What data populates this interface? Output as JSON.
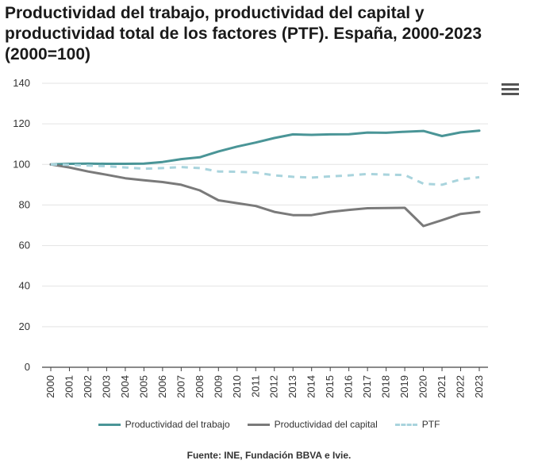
{
  "chart_data": {
    "type": "line",
    "title": "Productividad del trabajo, productividad del capital y productividad total de los factores (PTF). España, 2000-2023 (2000=100)",
    "x": [
      "2000",
      "2001",
      "2002",
      "2003",
      "2004",
      "2005",
      "2006",
      "2007",
      "2008",
      "2009",
      "2010",
      "2011",
      "2012",
      "2013",
      "2014",
      "2015",
      "2016",
      "2017",
      "2018",
      "2019",
      "2020",
      "2021",
      "2022",
      "2023"
    ],
    "ylim": [
      0,
      140
    ],
    "yticks": [
      0,
      20,
      40,
      60,
      80,
      100,
      120,
      140
    ],
    "grid": true,
    "legend_position": "bottom",
    "series": [
      {
        "name": "Productividad del trabajo",
        "color": "#4a9597",
        "dash": "solid",
        "values": [
          100,
          100.3,
          100.4,
          100.3,
          100.3,
          100.4,
          101.2,
          102.6,
          103.5,
          106.4,
          108.8,
          110.8,
          113.0,
          114.8,
          114.6,
          114.8,
          114.9,
          115.7,
          115.6,
          116.1,
          116.5,
          114.0,
          115.8,
          116.6
        ]
      },
      {
        "name": "Productividad del capital",
        "color": "#7a7a7a",
        "dash": "solid",
        "values": [
          100,
          98.5,
          96.5,
          94.9,
          93.2,
          92.2,
          91.3,
          90.0,
          87.2,
          82.3,
          80.9,
          79.5,
          76.6,
          75.0,
          75.0,
          76.6,
          77.6,
          78.4,
          78.5,
          78.6,
          69.6,
          72.5,
          75.6,
          76.6
        ]
      },
      {
        "name": "PTF",
        "color": "#a9d4dd",
        "dash": "dashed",
        "values": [
          100,
          99.8,
          99.4,
          99.1,
          98.5,
          97.9,
          98.2,
          98.7,
          98.2,
          96.5,
          96.4,
          96.0,
          94.6,
          93.9,
          93.5,
          94.1,
          94.6,
          95.3,
          95.0,
          94.8,
          90.5,
          90.0,
          92.6,
          93.7
        ]
      }
    ]
  },
  "menu": {
    "icon": "hamburger-menu-icon"
  },
  "source": "Fuente: INE, Fundación BBVA e Ivie."
}
